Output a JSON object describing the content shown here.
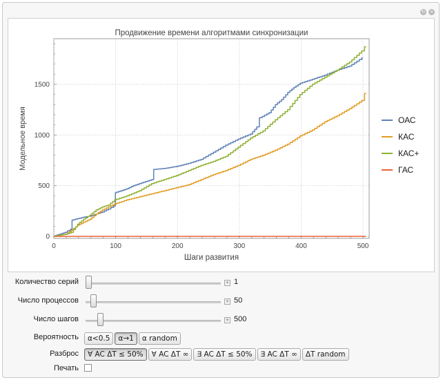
{
  "window": {
    "icons": [
      "refresh-icon",
      "close-icon"
    ]
  },
  "chart_data": {
    "type": "line",
    "title": "Продвижение времени алгоритмами синхронизации",
    "xlabel": "Шаги развития",
    "ylabel": "Модельное время",
    "xlim": [
      0,
      510
    ],
    "ylim": [
      -20,
      1950
    ],
    "xticks": [
      0,
      100,
      200,
      300,
      400,
      500
    ],
    "yticks": [
      0,
      500,
      1000,
      1500
    ],
    "grid": true,
    "legend_position": "right",
    "series": [
      {
        "name": "ОАС",
        "color": "#5e81b5",
        "points": [
          [
            0,
            0
          ],
          [
            10,
            20
          ],
          [
            20,
            40
          ],
          [
            29,
            70
          ],
          [
            30,
            160
          ],
          [
            40,
            175
          ],
          [
            50,
            190
          ],
          [
            60,
            200
          ],
          [
            70,
            220
          ],
          [
            80,
            240
          ],
          [
            90,
            270
          ],
          [
            99,
            300
          ],
          [
            100,
            430
          ],
          [
            110,
            450
          ],
          [
            120,
            470
          ],
          [
            130,
            500
          ],
          [
            140,
            520
          ],
          [
            150,
            540
          ],
          [
            160,
            560
          ],
          [
            163,
            660
          ],
          [
            180,
            670
          ],
          [
            200,
            690
          ],
          [
            220,
            720
          ],
          [
            240,
            760
          ],
          [
            260,
            830
          ],
          [
            280,
            900
          ],
          [
            300,
            960
          ],
          [
            320,
            1010
          ],
          [
            330,
            1080
          ],
          [
            335,
            1170
          ],
          [
            350,
            1220
          ],
          [
            360,
            1300
          ],
          [
            370,
            1350
          ],
          [
            380,
            1420
          ],
          [
            390,
            1470
          ],
          [
            400,
            1510
          ],
          [
            420,
            1550
          ],
          [
            440,
            1590
          ],
          [
            460,
            1640
          ],
          [
            480,
            1680
          ],
          [
            500,
            1760
          ]
        ]
      },
      {
        "name": "КАС",
        "color": "#e19c24",
        "points": [
          [
            0,
            0
          ],
          [
            10,
            10
          ],
          [
            20,
            20
          ],
          [
            30,
            60
          ],
          [
            40,
            110
          ],
          [
            50,
            140
          ],
          [
            60,
            170
          ],
          [
            70,
            220
          ],
          [
            80,
            260
          ],
          [
            90,
            290
          ],
          [
            100,
            320
          ],
          [
            120,
            360
          ],
          [
            140,
            390
          ],
          [
            160,
            420
          ],
          [
            180,
            450
          ],
          [
            200,
            480
          ],
          [
            220,
            510
          ],
          [
            240,
            560
          ],
          [
            260,
            610
          ],
          [
            280,
            650
          ],
          [
            300,
            700
          ],
          [
            320,
            760
          ],
          [
            340,
            800
          ],
          [
            360,
            850
          ],
          [
            380,
            910
          ],
          [
            400,
            990
          ],
          [
            420,
            1050
          ],
          [
            440,
            1130
          ],
          [
            460,
            1190
          ],
          [
            480,
            1260
          ],
          [
            500,
            1340
          ],
          [
            505,
            1410
          ]
        ]
      },
      {
        "name": "КАС+",
        "color": "#8fb032",
        "points": [
          [
            0,
            0
          ],
          [
            10,
            10
          ],
          [
            20,
            20
          ],
          [
            30,
            40
          ],
          [
            40,
            120
          ],
          [
            50,
            170
          ],
          [
            60,
            210
          ],
          [
            70,
            260
          ],
          [
            80,
            290
          ],
          [
            90,
            310
          ],
          [
            100,
            360
          ],
          [
            120,
            400
          ],
          [
            140,
            450
          ],
          [
            160,
            520
          ],
          [
            180,
            560
          ],
          [
            200,
            600
          ],
          [
            220,
            650
          ],
          [
            240,
            700
          ],
          [
            260,
            740
          ],
          [
            280,
            790
          ],
          [
            300,
            880
          ],
          [
            320,
            970
          ],
          [
            340,
            1040
          ],
          [
            360,
            1150
          ],
          [
            380,
            1250
          ],
          [
            400,
            1400
          ],
          [
            420,
            1500
          ],
          [
            440,
            1570
          ],
          [
            460,
            1640
          ],
          [
            480,
            1720
          ],
          [
            500,
            1830
          ],
          [
            505,
            1870
          ]
        ]
      },
      {
        "name": "ГАС",
        "color": "#eb6235",
        "points": [
          [
            0,
            0
          ],
          [
            505,
            0
          ]
        ]
      }
    ]
  },
  "controls": {
    "series_count": {
      "label": "Количество серий",
      "value": "1",
      "fraction": 0.0
    },
    "process_count": {
      "label": "Число процессов",
      "value": "50",
      "fraction": 0.04
    },
    "step_count": {
      "label": "Число шагов",
      "value": "500",
      "fraction": 0.09
    },
    "probability": {
      "label": "Вероятность",
      "options": [
        "α<0.5",
        "α→1",
        "α random"
      ],
      "selected": 1
    },
    "spread": {
      "label": "Разброс",
      "options": [
        "∀ AC ΔT ≤ 50%",
        "∀ AC ΔT ∞",
        "∃ AC ΔT ≤ 50%",
        "∃ AC ΔT ∞",
        "ΔT random"
      ],
      "selected": 0
    },
    "print": {
      "label": "Печать",
      "checked": false
    }
  }
}
